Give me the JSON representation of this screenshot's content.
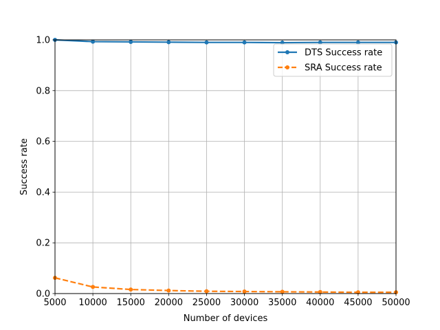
{
  "chart_data": {
    "type": "line",
    "xlabel": "Number of devices",
    "ylabel": "Success rate",
    "xlim": [
      5000,
      50000
    ],
    "ylim": [
      0.0,
      1.0
    ],
    "x_ticks": [
      5000,
      10000,
      15000,
      20000,
      25000,
      30000,
      35000,
      40000,
      45000,
      50000
    ],
    "y_ticks": [
      0.0,
      0.2,
      0.4,
      0.6,
      0.8,
      1.0
    ],
    "x_tick_labels": [
      "5000",
      "10000",
      "15000",
      "20000",
      "25000",
      "30000",
      "35000",
      "40000",
      "45000",
      "50000"
    ],
    "y_tick_labels": [
      "0.0",
      "0.2",
      "0.4",
      "0.6",
      "0.8",
      "1.0"
    ],
    "grid": true,
    "legend_position": "upper-right",
    "x": [
      5000,
      10000,
      15000,
      20000,
      25000,
      30000,
      35000,
      40000,
      45000,
      50000
    ],
    "series": [
      {
        "name": "DTS Success rate",
        "color": "#1f77b4",
        "line_style": "solid",
        "values": [
          1.0,
          0.993,
          0.992,
          0.991,
          0.99,
          0.99,
          0.989,
          0.99,
          0.99,
          0.99
        ]
      },
      {
        "name": "SRA Success rate",
        "color": "#ff7f0e",
        "line_style": "dashed",
        "values": [
          0.062,
          0.026,
          0.016,
          0.012,
          0.009,
          0.008,
          0.007,
          0.006,
          0.005,
          0.005
        ]
      }
    ]
  }
}
